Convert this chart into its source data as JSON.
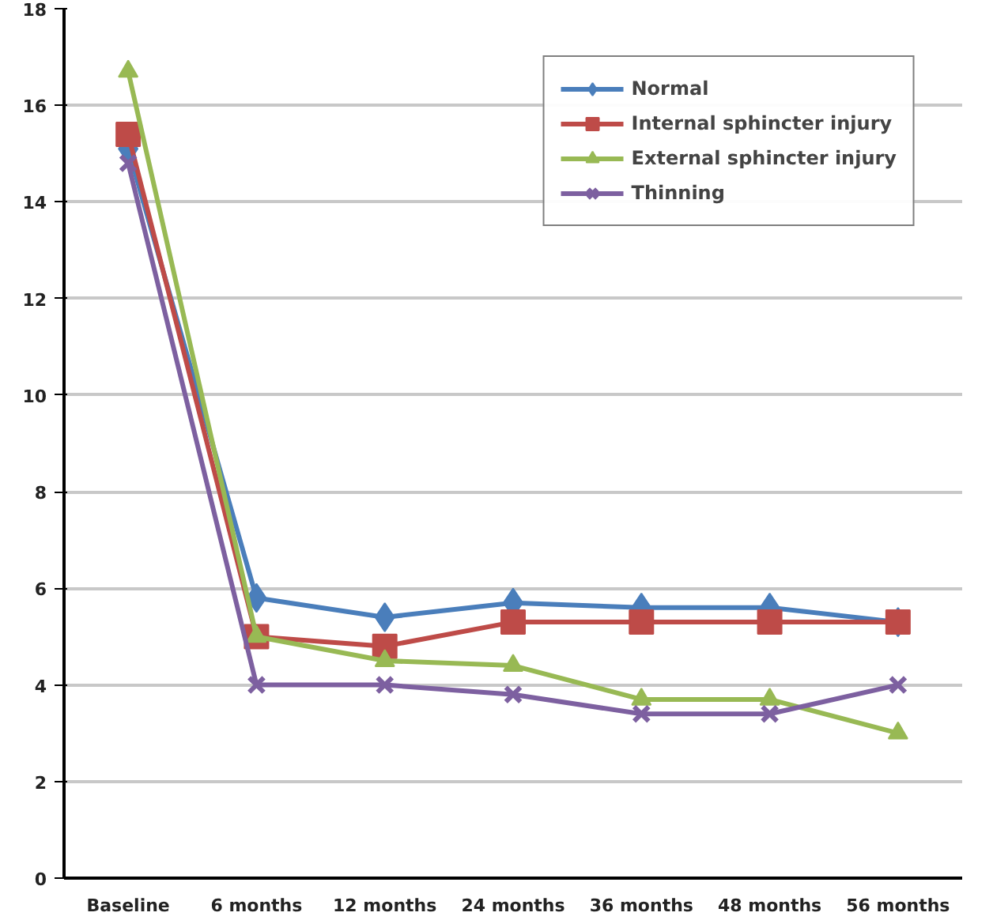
{
  "chart_data": {
    "type": "line",
    "categories": [
      "Baseline",
      "6 months",
      "12 months",
      "24 months",
      "36 months",
      "48 months",
      "56 months"
    ],
    "series": [
      {
        "name": "Normal",
        "color": "#4a7ebb",
        "marker": "diamond",
        "values": [
          15.1,
          5.8,
          5.4,
          5.7,
          5.6,
          5.6,
          5.3
        ]
      },
      {
        "name": "Internal sphincter injury",
        "color": "#be4b48",
        "marker": "square",
        "values": [
          15.4,
          5.0,
          4.8,
          5.3,
          5.3,
          5.3,
          5.3
        ]
      },
      {
        "name": "External sphincter injury",
        "color": "#98b954",
        "marker": "triangle",
        "values": [
          16.7,
          5.0,
          4.5,
          4.4,
          3.7,
          3.7,
          3.0
        ]
      },
      {
        "name": "Thinning",
        "color": "#7d60a0",
        "marker": "cross",
        "values": [
          14.8,
          4.0,
          4.0,
          3.8,
          3.4,
          3.4,
          4.0
        ]
      }
    ],
    "ylim": [
      0,
      18
    ],
    "yticks": [
      0,
      2,
      4,
      6,
      8,
      10,
      12,
      14,
      16,
      18
    ],
    "grid": "y",
    "legend": "top right",
    "line_style": "solid"
  }
}
